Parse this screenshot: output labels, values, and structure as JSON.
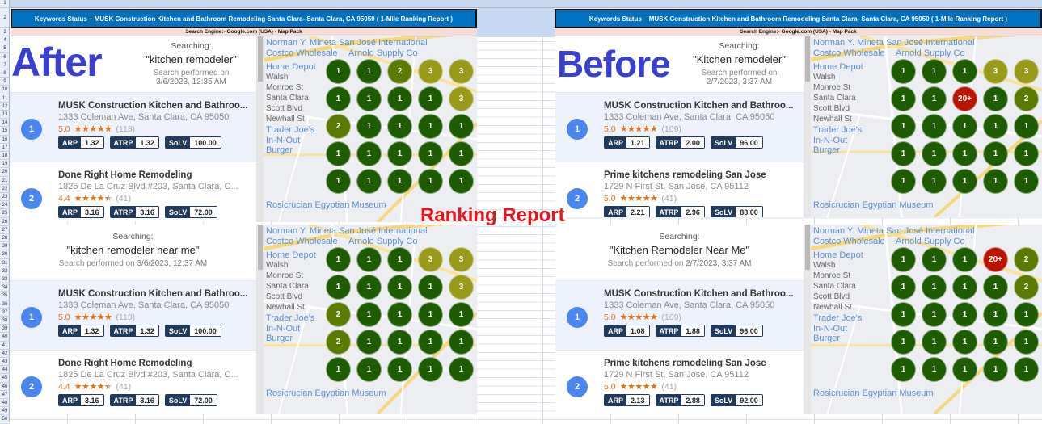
{
  "spreadsheet": {
    "row_count": 50
  },
  "header": {
    "title": "Keywords Status – MUSK Construction Kitchen and Bathroom Remodeling Santa Clara- Santa Clara, CA 95050  ( 1-Mile Ranking Report )",
    "subtitle": "Search Engine:- Google.com (USA) - Map Pack"
  },
  "overlays": {
    "after": "After",
    "before": "Before",
    "center": "Ranking Report"
  },
  "colors": {
    "rank_1": "#1e5c00",
    "rank_2": "#5a7a00",
    "rank_3": "#9a9a1a",
    "rank_20plus": "#b81400",
    "rank_badge": "#4a86f2",
    "metric_label": "#1f3a5c",
    "rating": "#e8710a"
  },
  "map_labels": [
    "Norman Y. Mineta San José International",
    "Home Depot",
    "Costco Wholesale",
    "Arnold Supply Co",
    "Santa Clara",
    "In-N-Out Burger",
    "Trader Joe's",
    "Newhall St",
    "Monroe St",
    "Rosicrucian Egyptian Museum",
    "Walsh",
    "Scott Blvd"
  ],
  "panels": [
    {
      "key": "tl",
      "searching_label": "Searching:",
      "query": "\"kitchen remodeler\"",
      "performed_prefix": "Search performed on ",
      "performed_date": "3/6/2023, 12:35 AM",
      "results": [
        {
          "rank": "1",
          "name": "MUSK Construction Kitchen and Bathroo...",
          "address": "1333 Coleman Ave, Santa Clara, CA 95050",
          "rating": "5.0",
          "reviews": "(118)",
          "metrics": [
            {
              "label": "ARP",
              "value": "1.32"
            },
            {
              "label": "ATRP",
              "value": "1.32"
            },
            {
              "label": "SoLV",
              "value": "100.00"
            }
          ]
        },
        {
          "rank": "2",
          "name": "Done Right Home Remodeling",
          "address": "1825 De La Cruz Blvd #203, Santa Clara, C...",
          "rating": "4.4",
          "reviews": "(41)",
          "metrics": [
            {
              "label": "ARP",
              "value": "3.16"
            },
            {
              "label": "ATRP",
              "value": "3.16"
            },
            {
              "label": "SoLV",
              "value": "72.00"
            }
          ]
        }
      ],
      "grid": [
        [
          "1",
          "1",
          "2",
          "3",
          "3"
        ],
        [
          "1",
          "1",
          "1",
          "1",
          "3"
        ],
        [
          "2",
          "1",
          "1",
          "1",
          "1"
        ],
        [
          "1",
          "1",
          "1",
          "1",
          "1"
        ],
        [
          "1",
          "1",
          "1",
          "1",
          "1"
        ]
      ]
    },
    {
      "key": "tr",
      "searching_label": "Searching:",
      "query": "\"Kitchen remodeler\"",
      "performed_prefix": "Search performed on ",
      "performed_date": "2/7/2023, 3:37 AM",
      "results": [
        {
          "rank": "1",
          "name": "MUSK Construction Kitchen and Bathroo...",
          "address": "1333 Coleman Ave, Santa Clara, CA 95050",
          "rating": "5.0",
          "reviews": "(109)",
          "metrics": [
            {
              "label": "ARP",
              "value": "1.21"
            },
            {
              "label": "ATRP",
              "value": "2.00"
            },
            {
              "label": "SoLV",
              "value": "96.00"
            }
          ]
        },
        {
          "rank": "2",
          "name": "Prime kitchens remodeling San Jose",
          "address": "1729 N First St, San Jose, CA 95112",
          "rating": "5.0",
          "reviews": "(41)",
          "metrics": [
            {
              "label": "ARP",
              "value": "2.21"
            },
            {
              "label": "ATRP",
              "value": "2.96"
            },
            {
              "label": "SoLV",
              "value": "88.00"
            }
          ]
        }
      ],
      "grid": [
        [
          "1",
          "1",
          "1",
          "3",
          "3"
        ],
        [
          "1",
          "1",
          "20+",
          "1",
          "2"
        ],
        [
          "1",
          "1",
          "1",
          "1",
          "1"
        ],
        [
          "1",
          "1",
          "1",
          "1",
          "1"
        ],
        [
          "1",
          "1",
          "1",
          "1",
          "1"
        ]
      ]
    },
    {
      "key": "bl",
      "searching_label": "Searching:",
      "query": "\"kitchen remodeler near me\"",
      "performed_prefix": "Search performed on ",
      "performed_date": "3/6/2023, 12:37 AM",
      "results": [
        {
          "rank": "1",
          "name": "MUSK Construction Kitchen and Bathroo...",
          "address": "1333 Coleman Ave, Santa Clara, CA 95050",
          "rating": "5.0",
          "reviews": "(118)",
          "metrics": [
            {
              "label": "ARP",
              "value": "1.32"
            },
            {
              "label": "ATRP",
              "value": "1.32"
            },
            {
              "label": "SoLV",
              "value": "100.00"
            }
          ]
        },
        {
          "rank": "2",
          "name": "Done Right Home Remodeling",
          "address": "1825 De La Cruz Blvd #203, Santa Clara, C...",
          "rating": "4.4",
          "reviews": "(41)",
          "metrics": [
            {
              "label": "ARP",
              "value": "3.16"
            },
            {
              "label": "ATRP",
              "value": "3.16"
            },
            {
              "label": "SoLV",
              "value": "72.00"
            }
          ]
        }
      ],
      "grid": [
        [
          "1",
          "1",
          "1",
          "3",
          "3"
        ],
        [
          "1",
          "1",
          "1",
          "1",
          "3"
        ],
        [
          "2",
          "1",
          "1",
          "1",
          "1"
        ],
        [
          "2",
          "1",
          "1",
          "1",
          "1"
        ],
        [
          "1",
          "1",
          "1",
          "1",
          "1"
        ]
      ]
    },
    {
      "key": "br",
      "searching_label": "Searching:",
      "query": "\"Kitchen Remodeler Near Me\"",
      "performed_prefix": "Search performed on ",
      "performed_date": "2/7/2023, 3:37 AM",
      "results": [
        {
          "rank": "1",
          "name": "MUSK Construction Kitchen and Bathroo...",
          "address": "1333 Coleman Ave, Santa Clara, CA 95050",
          "rating": "5.0",
          "reviews": "(109)",
          "metrics": [
            {
              "label": "ARP",
              "value": "1.08"
            },
            {
              "label": "ATRP",
              "value": "1.88"
            },
            {
              "label": "SoLV",
              "value": "96.00"
            }
          ]
        },
        {
          "rank": "2",
          "name": "Prime kitchens remodeling San Jose",
          "address": "1729 N First St, San Jose, CA 95112",
          "rating": "5.0",
          "reviews": "(41)",
          "metrics": [
            {
              "label": "ARP",
              "value": "2.13"
            },
            {
              "label": "ATRP",
              "value": "2.88"
            },
            {
              "label": "SoLV",
              "value": "92.00"
            }
          ]
        }
      ],
      "grid": [
        [
          "1",
          "1",
          "1",
          "20+",
          "2"
        ],
        [
          "1",
          "1",
          "1",
          "1",
          "2"
        ],
        [
          "1",
          "1",
          "1",
          "1",
          "1"
        ],
        [
          "1",
          "1",
          "1",
          "1",
          "1"
        ],
        [
          "1",
          "1",
          "1",
          "1",
          "1"
        ]
      ]
    }
  ]
}
